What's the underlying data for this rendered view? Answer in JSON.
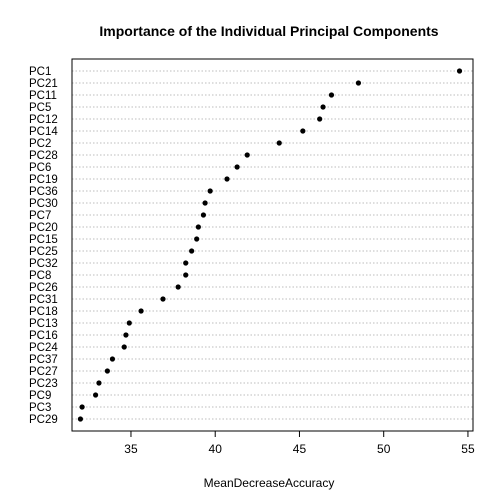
{
  "chart_data": {
    "type": "scatter",
    "title": "Importance of the Individual Principal Components",
    "xlabel": "MeanDecreaseAccuracy",
    "ylabel": "",
    "xlim": [
      31.5,
      55.3
    ],
    "xticks": [
      35,
      40,
      45,
      50,
      55
    ],
    "grid": "dotted horizontal lines per category",
    "categories": [
      "PC1",
      "PC21",
      "PC11",
      "PC5",
      "PC12",
      "PC14",
      "PC2",
      "PC28",
      "PC6",
      "PC19",
      "PC36",
      "PC30",
      "PC7",
      "PC20",
      "PC15",
      "PC25",
      "PC32",
      "PC8",
      "PC26",
      "PC31",
      "PC18",
      "PC13",
      "PC16",
      "PC24",
      "PC37",
      "PC27",
      "PC23",
      "PC9",
      "PC3",
      "PC29"
    ],
    "values": [
      54.5,
      48.5,
      46.9,
      46.4,
      46.2,
      45.2,
      43.8,
      41.9,
      41.3,
      40.7,
      39.7,
      39.4,
      39.3,
      39.0,
      38.9,
      38.6,
      38.25,
      38.25,
      37.8,
      36.9,
      35.6,
      34.9,
      34.7,
      34.6,
      33.9,
      33.6,
      33.1,
      32.9,
      32.1,
      32.0
    ]
  }
}
